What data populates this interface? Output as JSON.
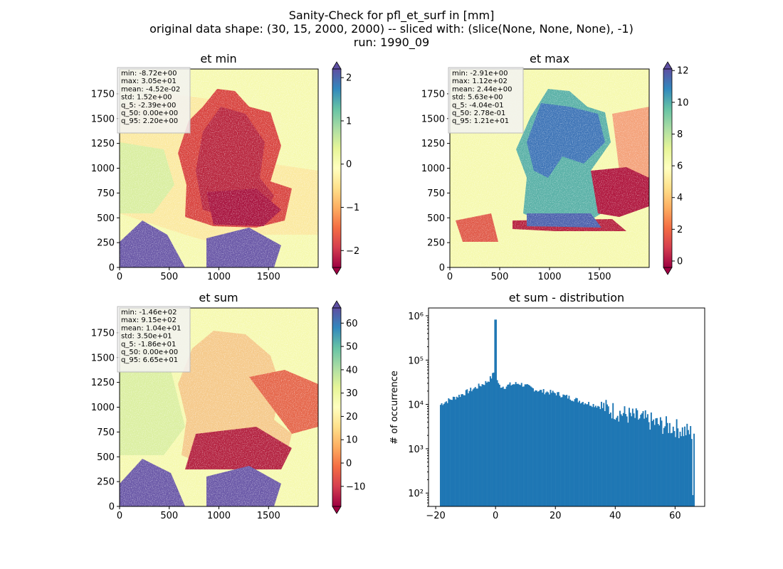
{
  "figure": {
    "title_lines": [
      "Sanity-Check for pfl_et_surf in [mm]",
      "original data shape: (30, 15, 2000, 2000) -- sliced with: (slice(None, None, None), -1)",
      "run: 1990_09"
    ]
  },
  "chart_data": [
    {
      "type": "heatmap",
      "title": "et min",
      "xlim": [
        0,
        2000
      ],
      "ylim": [
        0,
        2000
      ],
      "xticks": [
        0,
        500,
        1000,
        1500
      ],
      "yticks": [
        0,
        250,
        500,
        750,
        1000,
        1250,
        1500,
        1750
      ],
      "colormap": "Spectral",
      "colorbar": {
        "min": -2.39,
        "max": 2.2,
        "ticks": [
          -2,
          -1,
          0,
          1,
          2
        ],
        "extend": "both"
      },
      "stats": [
        "min: -8.72e+00",
        "max: 3.05e+01",
        "mean: -4.52e-02",
        "std: 1.52e+00",
        "q_5: -2.39e+00",
        "q_50: 0.00e+00",
        "q_95: 2.20e+00"
      ]
    },
    {
      "type": "heatmap",
      "title": "et max",
      "xlim": [
        0,
        2000
      ],
      "ylim": [
        0,
        2000
      ],
      "xticks": [
        0,
        500,
        1000,
        1500
      ],
      "yticks": [
        0,
        250,
        500,
        750,
        1000,
        1250,
        1500,
        1750
      ],
      "colormap": "Spectral",
      "colorbar": {
        "min": -0.404,
        "max": 12.1,
        "ticks": [
          0,
          2,
          4,
          6,
          8,
          10,
          12
        ],
        "extend": "both"
      },
      "stats": [
        "min: -2.91e+00",
        "max: 1.12e+02",
        "mean: 2.44e+00",
        "std: 5.63e+00",
        "q_5: -4.04e-01",
        "q_50: 2.78e-01",
        "q_95: 1.21e+01"
      ]
    },
    {
      "type": "heatmap",
      "title": "et sum",
      "xlim": [
        0,
        2000
      ],
      "ylim": [
        0,
        2000
      ],
      "xticks": [
        0,
        500,
        1000,
        1500
      ],
      "yticks": [
        0,
        250,
        500,
        750,
        1000,
        1250,
        1500,
        1750
      ],
      "colormap": "Spectral",
      "colorbar": {
        "min": -18.6,
        "max": 66.5,
        "ticks": [
          -10,
          0,
          10,
          20,
          30,
          40,
          50,
          60
        ],
        "extend": "both"
      },
      "stats": [
        "min: -1.46e+02",
        "max: 9.15e+02",
        "mean: 1.04e+01",
        "std: 3.50e+01",
        "q_5: -1.86e+01",
        "q_50: 0.00e+00",
        "q_95: 6.65e+01"
      ]
    },
    {
      "type": "bar",
      "title": "et sum - distribution",
      "ylabel": "# of occurrence",
      "xlabel": "",
      "log_y": true,
      "xlim": [
        -22.4,
        69.9
      ],
      "ylim": [
        50,
        1500000
      ],
      "xticks": [
        -20,
        0,
        20,
        40,
        60
      ],
      "ytick_labels": [
        "10²",
        "10³",
        "10⁴",
        "10⁵",
        "10⁶"
      ],
      "ytick_values": [
        100,
        1000,
        10000,
        100000,
        1000000
      ],
      "color": "#1f77b4",
      "bin_range": [
        -18.6,
        66.5
      ],
      "profile_x": [
        -18.6,
        -18,
        -15,
        -12,
        -9,
        -6,
        -3,
        -1.5,
        -0.7,
        -0.4,
        0,
        0.4,
        1,
        3,
        5,
        8,
        10,
        15,
        20,
        25,
        30,
        35,
        40,
        45,
        50,
        55,
        60,
        63,
        65.5,
        66.5
      ],
      "profile_y": [
        9500,
        10500,
        13000,
        16000,
        20000,
        25000,
        32000,
        40000,
        50000,
        60000,
        820000,
        40000,
        27000,
        25000,
        28000,
        30000,
        26000,
        20000,
        18000,
        14000,
        11000,
        9000,
        7000,
        5500,
        4500,
        3500,
        3000,
        2500,
        2300,
        2400
      ]
    }
  ]
}
